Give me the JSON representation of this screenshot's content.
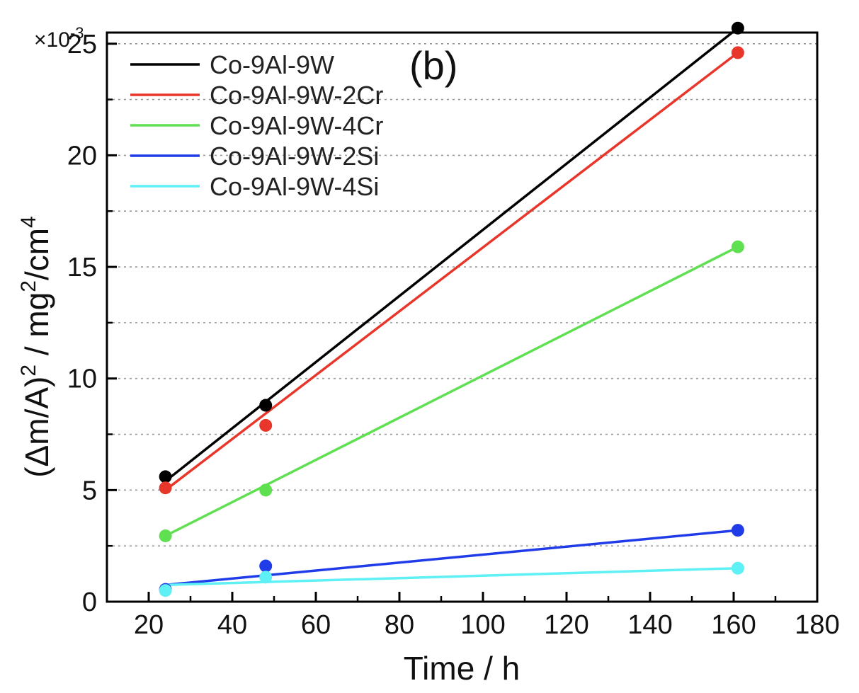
{
  "chart_data": {
    "type": "scatter",
    "panel_label": "(b)",
    "xlabel": "Time / h",
    "ylabel_parts": {
      "a": "(Δm/A)",
      "a_sup": "2",
      "b": " / mg",
      "b_sup": "2",
      "c": "/cm",
      "c_sup": "4"
    },
    "y_multiplier": {
      "base": "×10",
      "exp": "-3"
    },
    "xlim": [
      10,
      180
    ],
    "ylim": [
      0,
      25.5
    ],
    "x_ticks": [
      20,
      40,
      60,
      80,
      100,
      120,
      140,
      160,
      180
    ],
    "x_tick_labels": [
      "20",
      "40",
      "60",
      "80",
      "100",
      "120",
      "140",
      "160",
      "180"
    ],
    "y_ticks": [
      0,
      5,
      10,
      15,
      20,
      25
    ],
    "y_tick_labels": [
      "0",
      "5",
      "10",
      "15",
      "20",
      "25"
    ],
    "grid": "horizontal dotted",
    "legend_position": "top-left",
    "series": [
      {
        "name": "Co-9Al-9W",
        "color": "#000000",
        "x": [
          24,
          48,
          161
        ],
        "y": [
          5.6,
          8.8,
          25.7
        ],
        "fit": [
          [
            24,
            5.4
          ],
          [
            161,
            25.7
          ]
        ]
      },
      {
        "name": "Co-9Al-9W-2Cr",
        "color": "#e8362b",
        "x": [
          24,
          48,
          161
        ],
        "y": [
          5.1,
          7.9,
          24.6
        ],
        "fit": [
          [
            24,
            5.0
          ],
          [
            161,
            24.6
          ]
        ]
      },
      {
        "name": "Co-9Al-9W-4Cr",
        "color": "#5ee050",
        "x": [
          24,
          48,
          161
        ],
        "y": [
          2.95,
          5.0,
          15.9
        ],
        "fit": [
          [
            24,
            2.95
          ],
          [
            161,
            15.9
          ]
        ]
      },
      {
        "name": "Co-9Al-9W-2Si",
        "color": "#1f3ce8",
        "x": [
          24,
          48,
          161
        ],
        "y": [
          0.55,
          1.6,
          3.2
        ],
        "fit": [
          [
            24,
            0.75
          ],
          [
            161,
            3.2
          ]
        ]
      },
      {
        "name": "Co-9Al-9W-4Si",
        "color": "#5ef0f5",
        "x": [
          24,
          48,
          161
        ],
        "y": [
          0.5,
          1.1,
          1.5
        ],
        "fit": [
          [
            24,
            0.75
          ],
          [
            161,
            1.5
          ]
        ]
      }
    ]
  }
}
